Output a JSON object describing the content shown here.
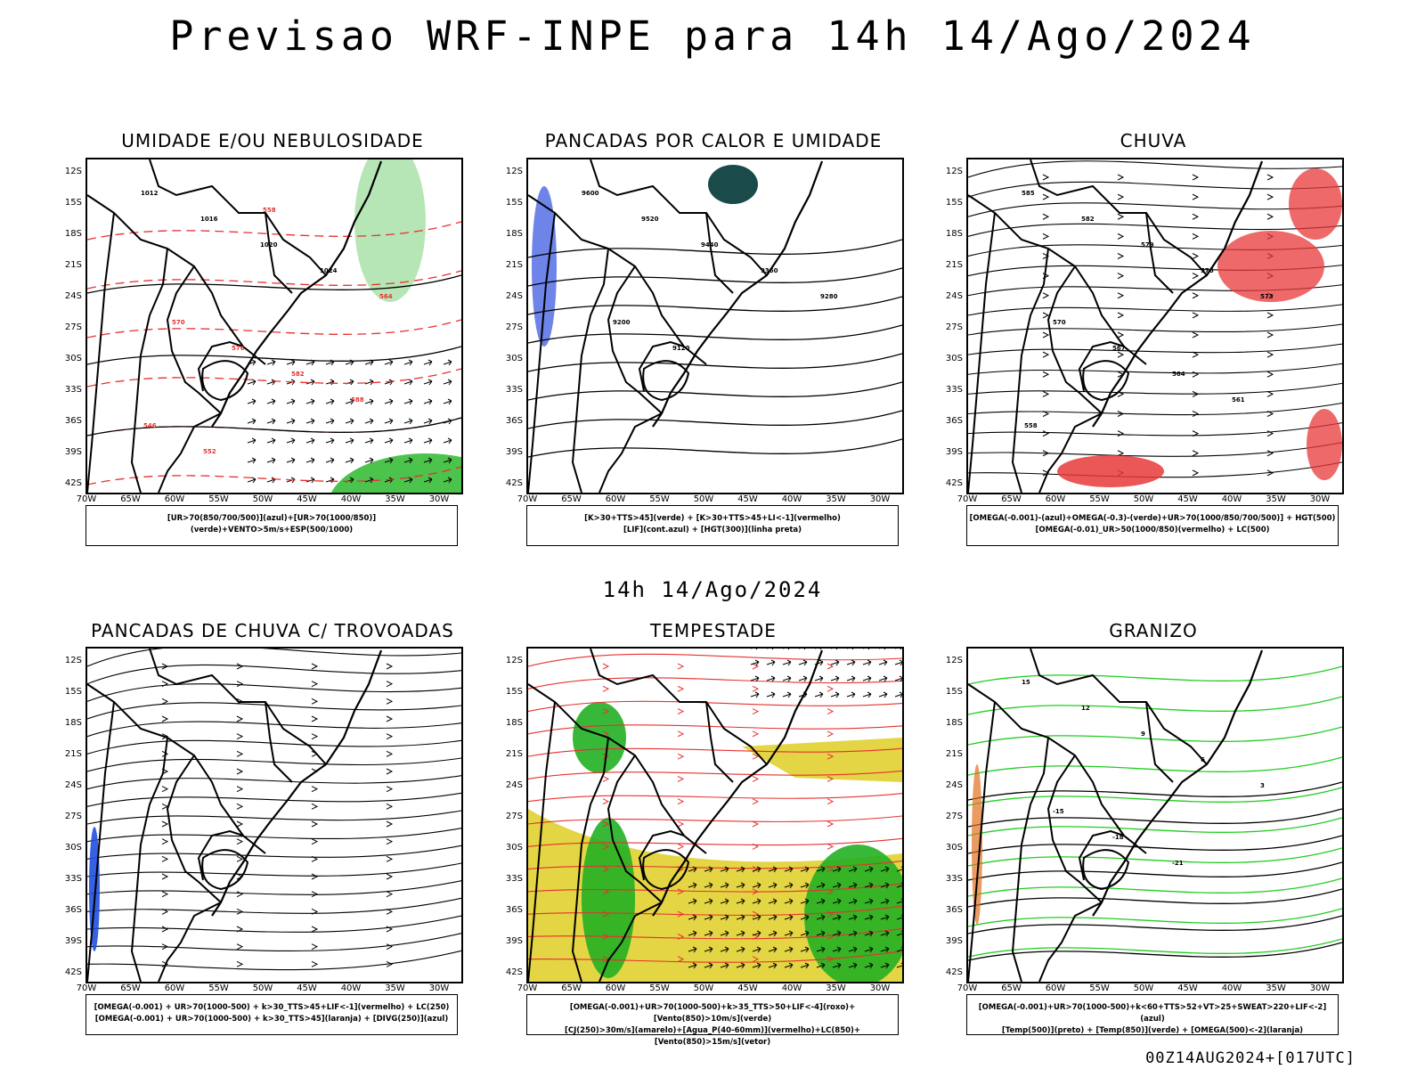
{
  "header": {
    "title": "Previsao WRF-INPE  para 14h 14/Ago/2024",
    "mid_title": "14h 14/Ago/2024"
  },
  "axes": {
    "lat_ticks": [
      "12S",
      "15S",
      "18S",
      "21S",
      "24S",
      "27S",
      "30S",
      "33S",
      "36S",
      "39S",
      "42S"
    ],
    "lon_ticks": [
      "70W",
      "65W",
      "60W",
      "55W",
      "50W",
      "45W",
      "40W",
      "35W",
      "30W"
    ]
  },
  "panels": [
    {
      "title": "UMIDADE E/OU NEBULOSIDADE",
      "legend": [
        "[UR>70(850/700/500)](azul)+[UR>70(1000/850)](verde)+VENTO>5m/s+ESP(500/1000)"
      ],
      "contour_labels": [
        "1012",
        "1016",
        "1020",
        "1024",
        "564",
        "570",
        "576",
        "582",
        "588",
        "546",
        "552",
        "558"
      ],
      "colors": {
        "contour": "#000000",
        "dashed": "#e83030",
        "fill": "#2db82d"
      }
    },
    {
      "title": "PANCADAS POR CALOR E UMIDADE",
      "legend": [
        "[K>30+TTS>45](verde) + [K>30+TTS>45+LI<-1](vermelho)",
        "[LIF](cont.azul) + [HGT(300)](linha preta)"
      ],
      "contour_labels": [
        "9600",
        "9520",
        "9440",
        "9360",
        "9280",
        "9200",
        "9120"
      ],
      "colors": {
        "contour": "#000000",
        "blue": "#3050e0",
        "dark": "#1a4a4a"
      }
    },
    {
      "title": "CHUVA",
      "legend": [
        "[OMEGA(-0.001)-(azul)+OMEGA(-0.3)-(verde)+UR>70(1000/850/700/500)] + HGT(500)",
        "[OMEGA(-0.01)_UR>50(1000/850)(vermelho) + LC(500)"
      ],
      "contour_labels": [
        "585",
        "582",
        "579",
        "576",
        "573",
        "570",
        "567",
        "564",
        "561",
        "558"
      ],
      "colors": {
        "contour": "#000000",
        "fill": "#e83838"
      }
    },
    {
      "title": "PANCADAS DE CHUVA C/ TROVOADAS",
      "legend": [
        "[OMEGA(-0.001) + UR>70(1000-500) + k>30_TTS>45+LIF<-1](vermelho) + LC(250)",
        "[OMEGA(-0.001) + UR>70(1000-500) + k>30_TTS>45](laranja) + [DIVG(250)](azul)"
      ],
      "contour_labels": [],
      "colors": {
        "contour": "#000000",
        "blue": "#2050e0"
      }
    },
    {
      "title": "TEMPESTADE",
      "legend": [
        "[OMEGA(-0.001)+UR>70(1000-500)+k>35_TTS>50+LIF<-4](roxo)+[Vento(850)>10m/s](verde)",
        "[CJ(250)>30m/s](amarelo)+[Agua_P(40-60mm)](vermelho)+LC(850)+[Vento(850)>15m/s](vetor)"
      ],
      "contour_labels": [],
      "colors": {
        "contour": "#e83030",
        "yellow": "#e0d030",
        "green": "#22b022"
      }
    },
    {
      "title": "GRANIZO",
      "legend": [
        "[OMEGA(-0.001)+UR>70(1000-500)+k<60+TTS>52+VT>25+SWEAT>220+LIF<-2](azul)",
        "[Temp(500)](preto) + [Temp(850)](verde) + [OMEGA(500)<-2](laranja)"
      ],
      "contour_labels": [
        "15",
        "12",
        "9",
        "6",
        "3",
        "-15",
        "-18",
        "-21"
      ],
      "colors": {
        "contour": "#000000",
        "green": "#22cc22",
        "orange": "#e07020"
      }
    }
  ],
  "footer": "00Z14AUG2024+[017UTC]"
}
